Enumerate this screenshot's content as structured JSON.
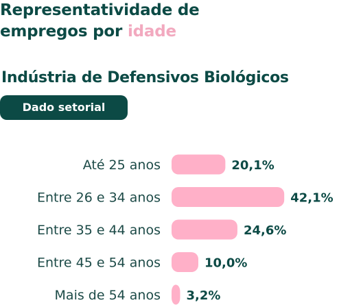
{
  "header": {
    "title_line1": "Representatividade de",
    "title_line2_prefix": "empregos por ",
    "title_line2_accent": "idade",
    "subtitle": "Indústria de Defensivos Biológicos",
    "badge": "Dado setorial"
  },
  "colors": {
    "primary": "#0c4a45",
    "bar": "#ffb0c8",
    "accent_text": "#f2a9bf"
  },
  "chart_data": {
    "type": "bar",
    "orientation": "horizontal",
    "categories": [
      "Até 25 anos",
      "Entre 26 e 34 anos",
      "Entre 35 e 44 anos",
      "Entre 45 e 54 anos",
      "Mais de 54 anos"
    ],
    "values": [
      20.1,
      42.1,
      24.6,
      10.0,
      3.2
    ],
    "value_labels": [
      "20,1%",
      "42,1%",
      "24,6%",
      "10,0%",
      "3,2%"
    ],
    "unit": "%",
    "grid": false,
    "legend": "none"
  }
}
